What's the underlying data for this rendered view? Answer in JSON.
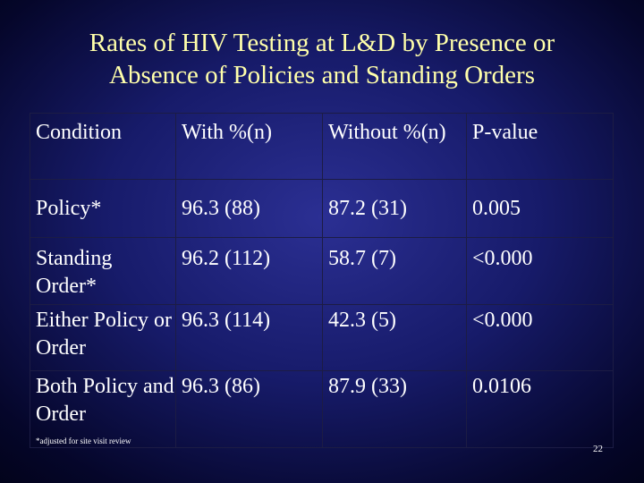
{
  "title": {
    "line1": "Rates of HIV Testing at L&D by Presence or",
    "line2": "Absence of Policies and Standing Orders"
  },
  "table": {
    "headers": {
      "condition": "Condition",
      "with": "With %(n)",
      "without": "Without %(n)",
      "pvalue": "P-value"
    },
    "rows": [
      {
        "condition": "Policy*",
        "with": "96.3 (88)",
        "without": "87.2 (31)",
        "pvalue": "0.005"
      },
      {
        "condition": "Standing Order*",
        "with": "96.2 (112)",
        "without": "58.7 (7)",
        "pvalue": "<0.000"
      },
      {
        "condition": "Either Policy or Order",
        "with": "96.3 (114)",
        "without": "42.3 (5)",
        "pvalue": "<0.000"
      },
      {
        "condition": "Both Policy and Order",
        "with": "96.3 (86)",
        "without": "87.9 (33)",
        "pvalue": "0.0106"
      }
    ]
  },
  "footnote": "*adjusted for site visit review",
  "page_number": "22",
  "colors": {
    "title": "#ffffaa",
    "text": "#ffffff",
    "background": "#171b6a"
  }
}
